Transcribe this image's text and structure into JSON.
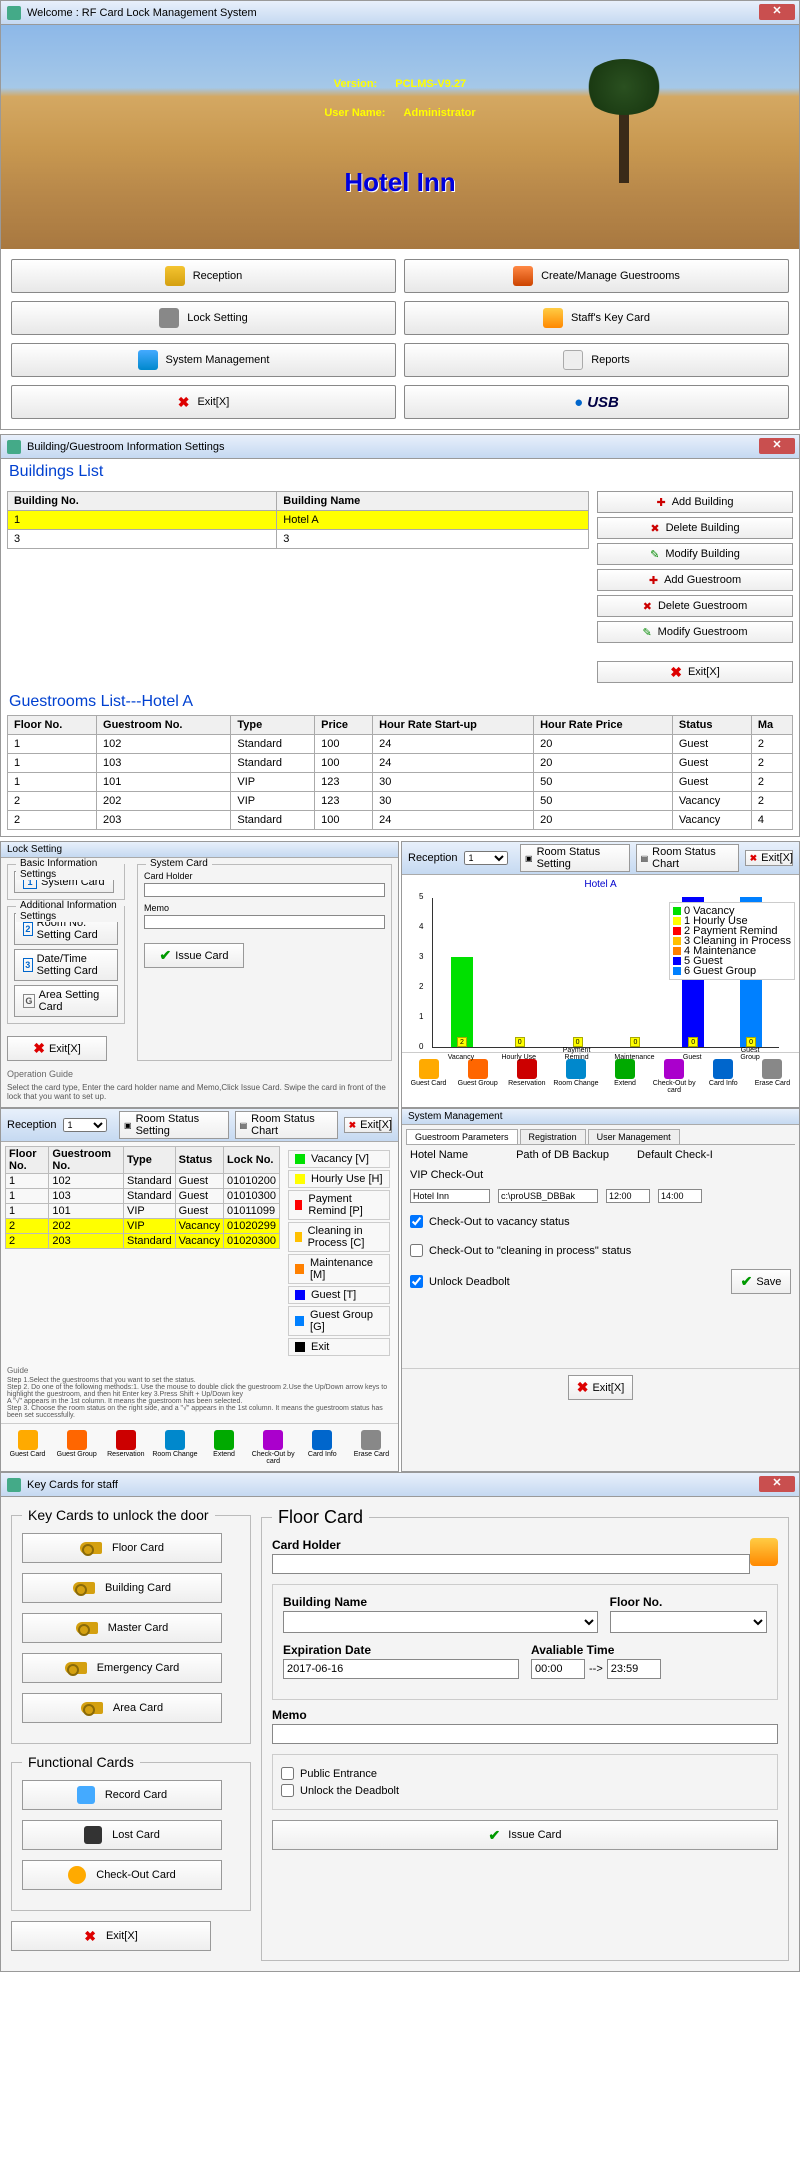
{
  "welcome": {
    "title": "Welcome :  RF Card Lock Management System",
    "version_label": "Version:",
    "version": "PCLMS-V9.27",
    "user_label": "User Name:",
    "user": "Administrator",
    "hotel": "Hotel Inn",
    "buttons": {
      "reception": "Reception",
      "lock": "Lock Setting",
      "sys": "System Management",
      "exit": "Exit[X]",
      "rooms": "Create/Manage Guestrooms",
      "staff": "Staff's Key Card",
      "reports": "Reports",
      "usb": "USB"
    }
  },
  "bldg": {
    "title": "Building/Guestroom Information Settings",
    "h1": "Buildings List",
    "cols": {
      "no": "Building No.",
      "name": "Building Name"
    },
    "rows": [
      {
        "no": "1",
        "name": "Hotel A",
        "sel": true
      },
      {
        "no": "3",
        "name": "3",
        "sel": false
      }
    ],
    "actions": {
      "addB": "Add Building",
      "delB": "Delete Building",
      "modB": "Modify Building",
      "addG": "Add Guestroom",
      "delG": "Delete Guestroom",
      "modG": "Modify Guestroom",
      "exit": "Exit[X]"
    },
    "h2": "Guestrooms List---Hotel A",
    "gcols": {
      "floor": "Floor No.",
      "room": "Guestroom No.",
      "type": "Type",
      "price": "Price",
      "hrs": "Hour Rate Start-up",
      "hrp": "Hour Rate Price",
      "status": "Status",
      "max": "Ma"
    },
    "grows": [
      {
        "floor": "1",
        "room": "102",
        "type": "Standard",
        "price": "100",
        "hrs": "24",
        "hrp": "20",
        "status": "Guest",
        "max": "2"
      },
      {
        "floor": "1",
        "room": "103",
        "type": "Standard",
        "price": "100",
        "hrs": "24",
        "hrp": "20",
        "status": "Guest",
        "max": "2"
      },
      {
        "floor": "1",
        "room": "101",
        "type": "VIP",
        "price": "123",
        "hrs": "30",
        "hrp": "50",
        "status": "Guest",
        "max": "2"
      },
      {
        "floor": "2",
        "room": "202",
        "type": "VIP",
        "price": "123",
        "hrs": "30",
        "hrp": "50",
        "status": "Vacancy",
        "max": "2"
      },
      {
        "floor": "2",
        "room": "203",
        "type": "Standard",
        "price": "100",
        "hrs": "24",
        "hrp": "20",
        "status": "Vacancy",
        "max": "4"
      }
    ]
  },
  "lockset": {
    "title": "Lock Setting",
    "basic": "Basic Information Settings",
    "addl": "Additional Information Settings",
    "b1": "System Card",
    "b2": "Room No. Setting Card",
    "b3": "Date/Time Setting Card",
    "b4": "Area Setting Card",
    "exit": "Exit[X]",
    "syscard": "System Card",
    "holder": "Card Holder",
    "memo": "Memo",
    "issue": "Issue Card",
    "opguide": "Operation Guide",
    "optext": "Select the card type, Enter the card holder name and Memo,Click Issue Card. Swipe the card in front of the  lock that you want to set up."
  },
  "reception_chart": {
    "title": "Reception",
    "hotel": "Hotel A",
    "dropdown": "1",
    "btns": {
      "rss": "Room Status Setting",
      "rsc": "Room Status Chart",
      "exit": "Exit[X]"
    },
    "type": "bar",
    "ylim": [
      0,
      5
    ],
    "categories": [
      "Vacancy",
      "Hourly Use",
      "Payment Remind",
      "Maintenance",
      "Guest",
      "Guest Group"
    ],
    "values": [
      3,
      0,
      0,
      0,
      5,
      5
    ],
    "counts": [
      2,
      0,
      0,
      0,
      0,
      0
    ],
    "colors": [
      "#00e000",
      "#ffff00",
      "#ff0000",
      "#ff8000",
      "#0000ff",
      "#0080ff"
    ],
    "legend": [
      "Vacancy",
      "Hourly Use",
      "Payment Remind",
      "Cleaning in Process",
      "Maintenance",
      "Guest",
      "Guest Group"
    ],
    "legend_colors": [
      "#00e000",
      "#ffff00",
      "#ff0000",
      "#ffc000",
      "#ff8000",
      "#0000ff",
      "#0080ff"
    ],
    "iconrow": [
      "Guest Card",
      "Guest Group",
      "Reservation",
      "Room Change",
      "Extend",
      "Check-Out by card",
      "Card Info",
      "Erase Card"
    ]
  },
  "reception_list": {
    "title": "Reception",
    "dropdown": "1",
    "btns": {
      "rss": "Room Status Setting",
      "rsc": "Room Status Chart",
      "exit": "Exit[X]"
    },
    "cols": [
      "Floor No.",
      "Guestroom No.",
      "Type",
      "Status",
      "Lock No."
    ],
    "rows": [
      {
        "c": [
          "1",
          "102",
          "Standard",
          "Guest",
          "01010200"
        ],
        "sel": false
      },
      {
        "c": [
          "1",
          "103",
          "Standard",
          "Guest",
          "01010300"
        ],
        "sel": false
      },
      {
        "c": [
          "1",
          "101",
          "VIP",
          "Guest",
          "01011099"
        ],
        "sel": false
      },
      {
        "c": [
          "2",
          "202",
          "VIP",
          "Vacancy",
          "01020299"
        ],
        "sel": true
      },
      {
        "c": [
          "2",
          "203",
          "Standard",
          "Vacancy",
          "01020300"
        ],
        "sel": true
      }
    ],
    "statuses": [
      "Vacancy [V]",
      "Hourly Use [H]",
      "Payment Remind [P]",
      "Cleaning in Process [C]",
      "Maintenance [M]",
      "Guest [T]",
      "Guest Group [G]",
      "Exit"
    ],
    "status_colors": [
      "#00e000",
      "#ffff00",
      "#ff0000",
      "#ffc000",
      "#ff8000",
      "#0000ff",
      "#0080ff",
      "#000"
    ],
    "guide_h": "Guide",
    "guide": "Step 1.Select the guestrooms that you want to set the status.\nStep 2. Do one of the following methods:1. Use the mouse to double click the guestroom 2.Use the Up/Down arrow keys to highlight the guestroom, and then hit Enter key 3.Press Shift + Up/Down key\nA \"√\" appears in the 1st column. It means the guestroom has been selected.\nStep 3. Choose the room status on the right side, and a \"√\" appears in the 1st column. It means the guestroom status has been set successfully.",
    "iconrow": [
      "Guest Card",
      "Guest Group",
      "Reservation",
      "Room Change",
      "Extend",
      "Check-Out by card",
      "Card Info",
      "Erase Card"
    ]
  },
  "sysmgmt": {
    "title": "System Management",
    "tabs": [
      "Guestroom Parameters",
      "Registration",
      "User Management"
    ],
    "fields": {
      "hname_l": "Hotel Name",
      "hname": "Hotel Inn",
      "path_l": "Path of DB Backup",
      "path": "c:\\proUSB_DBBak",
      "chkin_l": "Default Check-I",
      "chkin": "12:00",
      "chkout_l": "VIP Check-Out",
      "chkout": "14:00",
      "cb1": "Check-Out to vacancy status",
      "cb2": "Check-Out to \"cleaning in process\" status",
      "cb3": "Unlock Deadbolt",
      "save": "Save",
      "exit": "Exit[X]"
    }
  },
  "staff": {
    "title": "Key Cards for staff",
    "g1": "Key Cards to unlock the door",
    "g2": "Functional Cards",
    "btns": {
      "floor": "Floor Card",
      "bldg": "Building Card",
      "master": "Master Card",
      "emerg": "Emergency Card",
      "area": "Area Card",
      "record": "Record Card",
      "lost": "Lost Card",
      "checkout": "Check-Out Card",
      "exit": "Exit[X]"
    },
    "panel": {
      "title": "Floor Card",
      "holder_l": "Card Holder",
      "holder": "",
      "bname_l": "Building Name",
      "floor_l": "Floor No.",
      "exp_l": "Expiration Date",
      "exp": "2017-06-16",
      "avail_l": "Avaliable Time",
      "t1": "00:00",
      "arrow": "-->",
      "t2": "23:59",
      "memo_l": "Memo",
      "memo": "",
      "cb1": "Public Entrance",
      "cb2": "Unlock the Deadbolt",
      "issue": "Issue Card"
    }
  }
}
